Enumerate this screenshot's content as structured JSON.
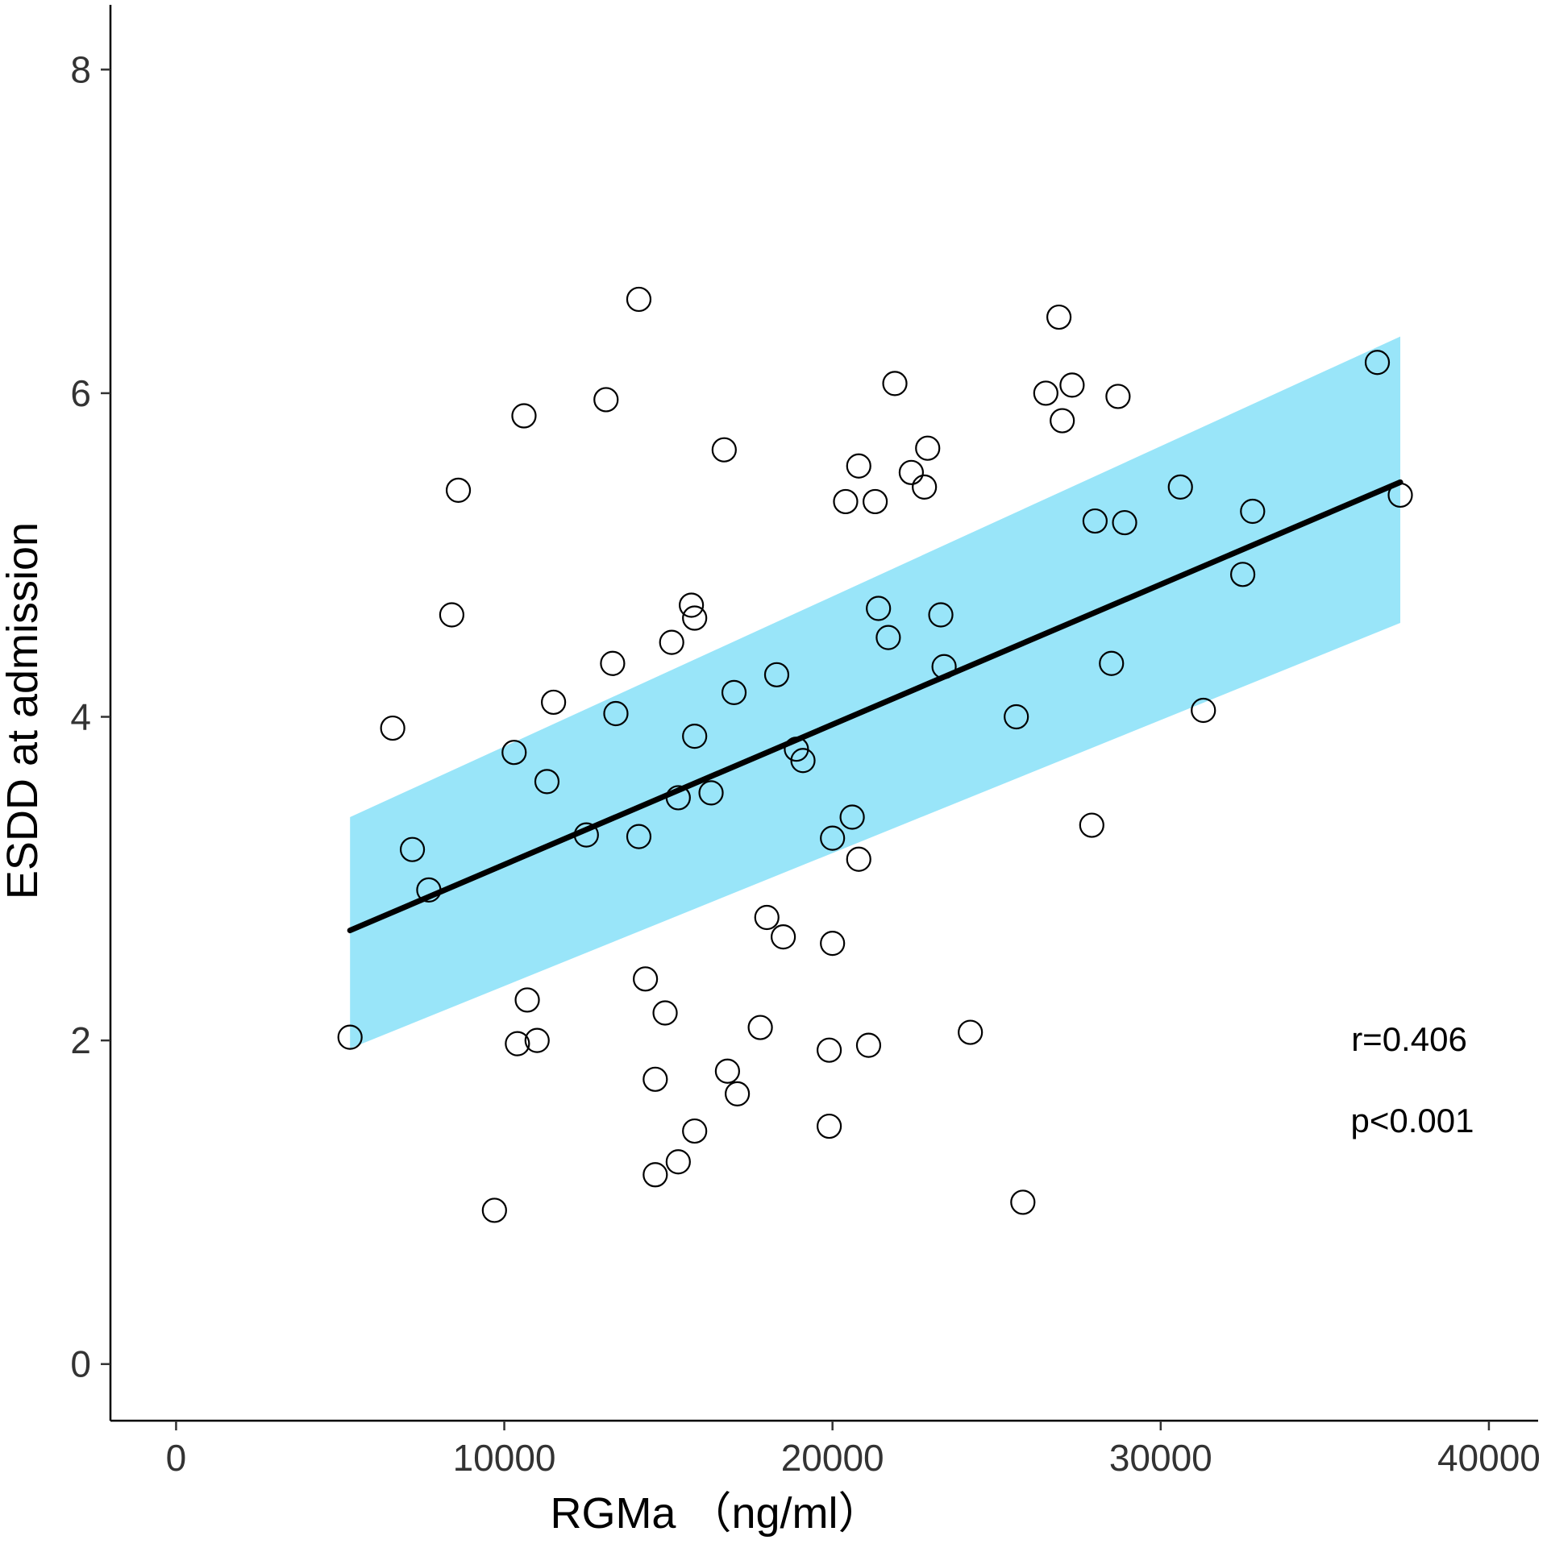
{
  "chart_data": {
    "type": "scatter",
    "title": "",
    "xlabel": "RGMa （ng/ml）",
    "ylabel": "ESDD at admission",
    "xlim": [
      -2000,
      41500
    ],
    "ylim": [
      -0.35,
      8.4
    ],
    "xticks": [
      0,
      10000,
      20000,
      30000,
      40000
    ],
    "yticks": [
      0,
      2,
      4,
      6,
      8
    ],
    "grid": false,
    "legend": "none",
    "annotations": [
      "r=0.406",
      "p<0.001"
    ],
    "colors": {
      "ci_band": "#99e5f9",
      "fit_line": "#000000",
      "points": "#000000"
    },
    "fit": {
      "x": [
        5300,
        37300
      ],
      "y": [
        2.68,
        5.45
      ],
      "ci_lower": [
        1.95,
        4.58
      ],
      "ci_upper": [
        3.38,
        6.35
      ]
    },
    "points": [
      {
        "x": 5300,
        "y": 2.02
      },
      {
        "x": 6600,
        "y": 3.93
      },
      {
        "x": 7200,
        "y": 3.18
      },
      {
        "x": 7700,
        "y": 2.93
      },
      {
        "x": 8400,
        "y": 4.63
      },
      {
        "x": 8600,
        "y": 5.4
      },
      {
        "x": 9700,
        "y": 0.95
      },
      {
        "x": 10300,
        "y": 3.78
      },
      {
        "x": 10400,
        "y": 1.98
      },
      {
        "x": 10600,
        "y": 5.86
      },
      {
        "x": 10700,
        "y": 2.25
      },
      {
        "x": 11000,
        "y": 2.0
      },
      {
        "x": 11300,
        "y": 3.6
      },
      {
        "x": 11500,
        "y": 4.09
      },
      {
        "x": 12500,
        "y": 3.27
      },
      {
        "x": 13100,
        "y": 5.96
      },
      {
        "x": 13300,
        "y": 4.33
      },
      {
        "x": 13400,
        "y": 4.02
      },
      {
        "x": 14100,
        "y": 6.58
      },
      {
        "x": 14100,
        "y": 3.26
      },
      {
        "x": 14300,
        "y": 2.38
      },
      {
        "x": 14600,
        "y": 1.17
      },
      {
        "x": 14600,
        "y": 1.76
      },
      {
        "x": 14900,
        "y": 2.17
      },
      {
        "x": 15100,
        "y": 4.46
      },
      {
        "x": 15300,
        "y": 1.25
      },
      {
        "x": 15300,
        "y": 3.5
      },
      {
        "x": 15700,
        "y": 4.69
      },
      {
        "x": 15800,
        "y": 1.44
      },
      {
        "x": 15800,
        "y": 4.61
      },
      {
        "x": 15800,
        "y": 3.88
      },
      {
        "x": 16300,
        "y": 3.53
      },
      {
        "x": 16700,
        "y": 5.65
      },
      {
        "x": 16800,
        "y": 1.81
      },
      {
        "x": 17000,
        "y": 4.15
      },
      {
        "x": 17100,
        "y": 1.67
      },
      {
        "x": 17800,
        "y": 2.08
      },
      {
        "x": 18000,
        "y": 2.76
      },
      {
        "x": 18300,
        "y": 4.26
      },
      {
        "x": 18500,
        "y": 2.64
      },
      {
        "x": 18900,
        "y": 3.8
      },
      {
        "x": 19100,
        "y": 3.73
      },
      {
        "x": 19900,
        "y": 1.94
      },
      {
        "x": 19900,
        "y": 1.47
      },
      {
        "x": 20000,
        "y": 2.6
      },
      {
        "x": 20000,
        "y": 3.25
      },
      {
        "x": 20400,
        "y": 5.33
      },
      {
        "x": 20600,
        "y": 3.38
      },
      {
        "x": 20800,
        "y": 5.55
      },
      {
        "x": 20800,
        "y": 3.12
      },
      {
        "x": 21100,
        "y": 1.97
      },
      {
        "x": 21300,
        "y": 5.33
      },
      {
        "x": 21400,
        "y": 4.67
      },
      {
        "x": 21700,
        "y": 4.49
      },
      {
        "x": 21900,
        "y": 6.06
      },
      {
        "x": 22400,
        "y": 5.51
      },
      {
        "x": 22800,
        "y": 5.42
      },
      {
        "x": 22900,
        "y": 5.66
      },
      {
        "x": 23300,
        "y": 4.63
      },
      {
        "x": 23400,
        "y": 4.31
      },
      {
        "x": 24200,
        "y": 2.05
      },
      {
        "x": 25600,
        "y": 4.0
      },
      {
        "x": 25800,
        "y": 1.0
      },
      {
        "x": 26500,
        "y": 6.0
      },
      {
        "x": 26900,
        "y": 6.47
      },
      {
        "x": 27000,
        "y": 5.83
      },
      {
        "x": 27300,
        "y": 6.05
      },
      {
        "x": 27900,
        "y": 3.33
      },
      {
        "x": 28000,
        "y": 5.21
      },
      {
        "x": 28500,
        "y": 4.33
      },
      {
        "x": 28700,
        "y": 5.98
      },
      {
        "x": 28900,
        "y": 5.2
      },
      {
        "x": 30600,
        "y": 5.42
      },
      {
        "x": 31300,
        "y": 4.04
      },
      {
        "x": 32500,
        "y": 4.88
      },
      {
        "x": 32800,
        "y": 5.27
      },
      {
        "x": 36600,
        "y": 6.19
      },
      {
        "x": 37300,
        "y": 5.37
      }
    ]
  }
}
